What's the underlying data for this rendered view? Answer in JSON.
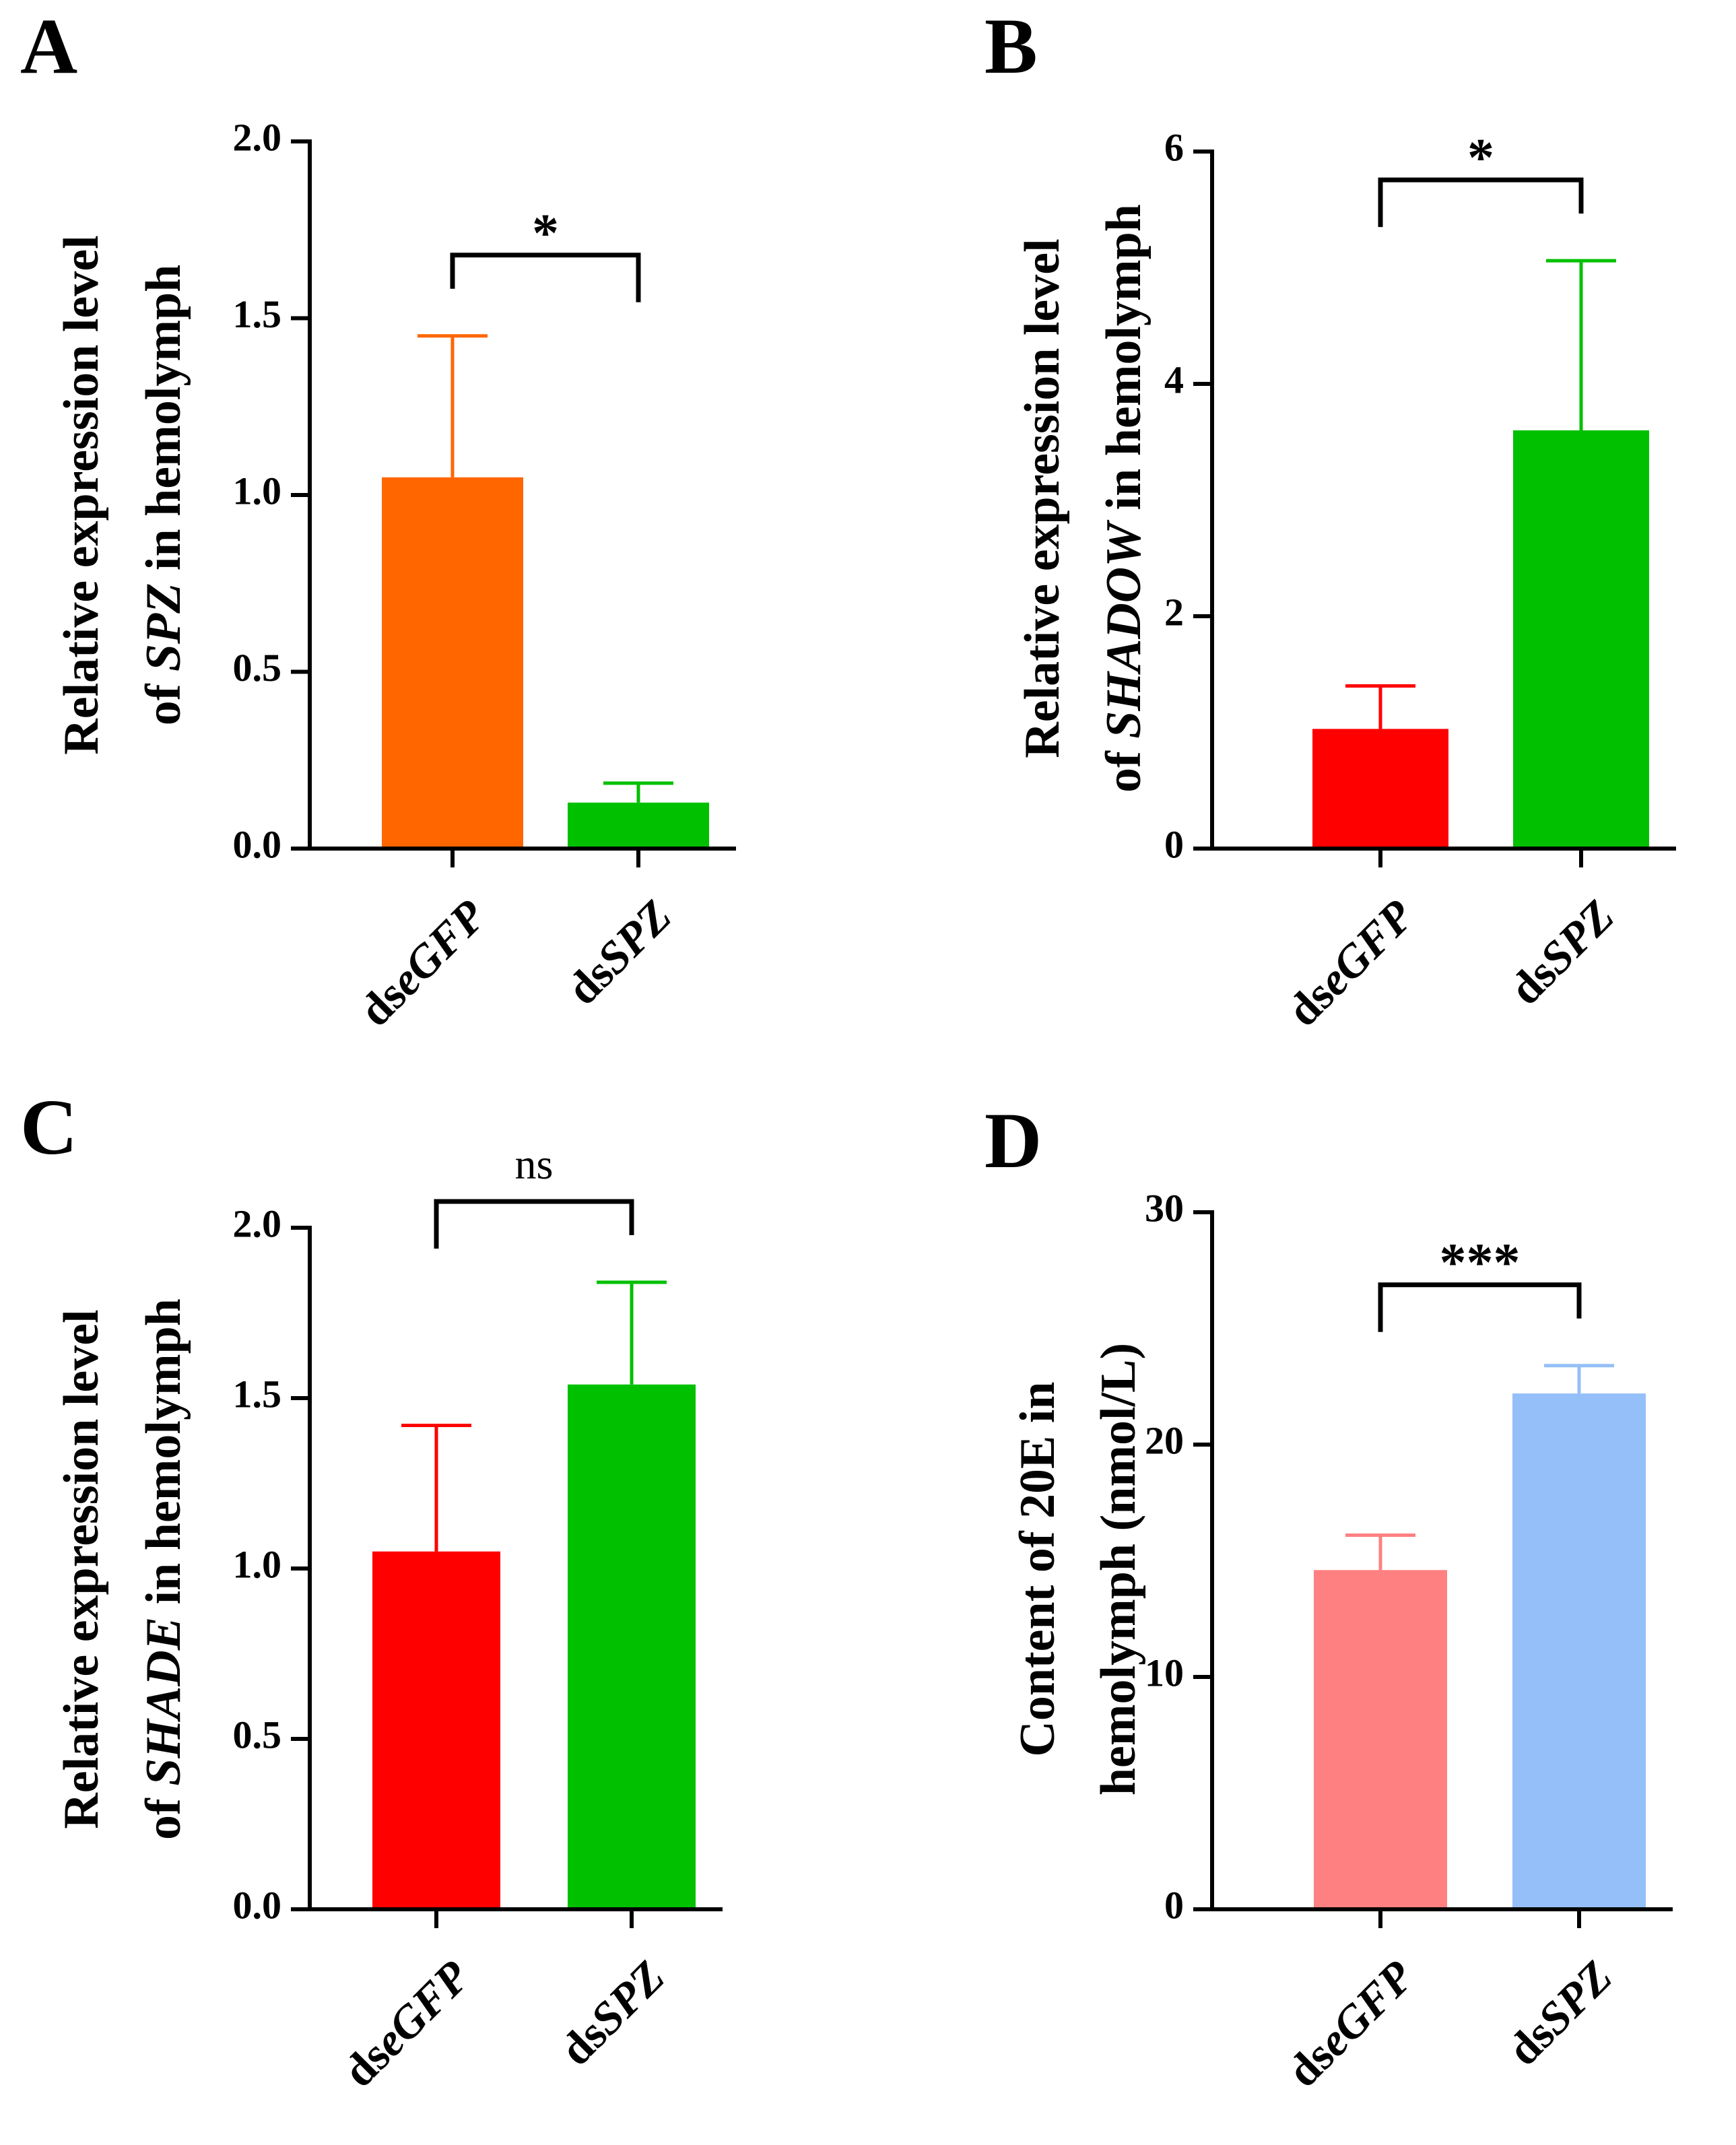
{
  "figure": {
    "background": "#ffffff"
  },
  "chart_data": [
    {
      "panel": "A",
      "type": "bar",
      "title": "",
      "ylabel_parts": [
        [
          {
            "t": "Relative expression level",
            "i": false
          }
        ],
        [
          {
            "t": "of ",
            "i": false
          },
          {
            "t": "SPZ",
            "i": true
          },
          {
            "t": " in hemolymph",
            "i": false
          }
        ]
      ],
      "ylim": [
        0,
        2.0
      ],
      "yticks": [
        0,
        0.5,
        1.0,
        1.5,
        2.0
      ],
      "ytick_labels": [
        "0.0",
        "0.5",
        "1.0",
        "1.5",
        "2.0"
      ],
      "categories": [
        [
          {
            "t": "ds",
            "i": false
          },
          {
            "t": "eGFP",
            "i": true
          }
        ],
        [
          {
            "t": "ds",
            "i": false
          },
          {
            "t": "SPZ",
            "i": true
          }
        ]
      ],
      "values": [
        1.05,
        0.13
      ],
      "errors": [
        0.4,
        0.055
      ],
      "colors": [
        "#ff6600",
        "#00c000"
      ],
      "significance": "*",
      "significance_style": "bold"
    },
    {
      "panel": "B",
      "type": "bar",
      "title": "",
      "ylabel_parts": [
        [
          {
            "t": "Relative expression level",
            "i": false
          }
        ],
        [
          {
            "t": "of ",
            "i": false
          },
          {
            "t": "SHADOW",
            "i": true
          },
          {
            "t": " in hemolymph",
            "i": false
          }
        ]
      ],
      "ylim": [
        0,
        6
      ],
      "yticks": [
        0,
        2,
        4,
        6
      ],
      "ytick_labels": [
        "0",
        "2",
        "4",
        "6"
      ],
      "categories": [
        [
          {
            "t": "ds",
            "i": false
          },
          {
            "t": "eGFP",
            "i": true
          }
        ],
        [
          {
            "t": "ds",
            "i": false
          },
          {
            "t": "SPZ",
            "i": true
          }
        ]
      ],
      "values": [
        1.03,
        3.6
      ],
      "errors": [
        0.37,
        1.46
      ],
      "colors": [
        "#ff0000",
        "#00c000"
      ],
      "significance": "*",
      "significance_style": "bold"
    },
    {
      "panel": "C",
      "type": "bar",
      "title": "",
      "ylabel_parts": [
        [
          {
            "t": "Relative expression level",
            "i": false
          }
        ],
        [
          {
            "t": "of ",
            "i": false
          },
          {
            "t": "SHADE",
            "i": true
          },
          {
            "t": " in hemolymph",
            "i": false
          }
        ]
      ],
      "ylim": [
        0,
        2.0
      ],
      "yticks": [
        0,
        0.5,
        1.0,
        1.5,
        2.0
      ],
      "ytick_labels": [
        "0.0",
        "0.5",
        "1.0",
        "1.5",
        "2.0"
      ],
      "categories": [
        [
          {
            "t": "ds",
            "i": false
          },
          {
            "t": "eGFP",
            "i": true
          }
        ],
        [
          {
            "t": "ds",
            "i": false
          },
          {
            "t": "SPZ",
            "i": true
          }
        ]
      ],
      "values": [
        1.05,
        1.54
      ],
      "errors": [
        0.37,
        0.3
      ],
      "colors": [
        "#ff0000",
        "#00c000"
      ],
      "significance": "ns",
      "significance_style": "normal"
    },
    {
      "panel": "D",
      "type": "bar",
      "title": "",
      "ylabel_parts": [
        [
          {
            "t": "Content of 20E in",
            "i": false
          }
        ],
        [
          {
            "t": "hemolymph (nmol/L)",
            "i": false
          }
        ]
      ],
      "ylim": [
        0,
        30
      ],
      "yticks": [
        0,
        10,
        20,
        30
      ],
      "ytick_labels": [
        "0",
        "10",
        "20",
        "30"
      ],
      "categories": [
        [
          {
            "t": "ds",
            "i": false
          },
          {
            "t": "eGFP",
            "i": true
          }
        ],
        [
          {
            "t": "ds",
            "i": false
          },
          {
            "t": "SPZ",
            "i": true
          }
        ]
      ],
      "values": [
        14.6,
        22.2
      ],
      "errors": [
        1.5,
        1.2
      ],
      "colors": [
        "#ff8080",
        "#94bff8"
      ],
      "significance": "***",
      "significance_style": "bold"
    }
  ]
}
